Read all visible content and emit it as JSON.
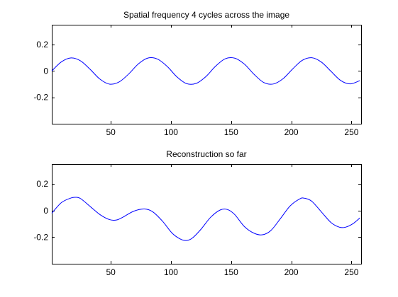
{
  "chart_data": [
    {
      "type": "line",
      "title": "Spatial frequency 4 cycles across the image",
      "xlabel": "",
      "ylabel": "",
      "xlim": [
        1,
        258
      ],
      "ylim": [
        -0.4,
        0.35
      ],
      "xticks": [
        50,
        100,
        150,
        200,
        250
      ],
      "yticks": [
        0.2,
        0,
        -0.2
      ],
      "xtick_labels": [
        "50",
        "100",
        "150",
        "200",
        "250"
      ],
      "ytick_labels": [
        "0.2",
        "0",
        "-0.2"
      ],
      "grid": false,
      "series": [
        {
          "color": "#0000ff",
          "x": [
            1,
            9,
            17,
            25,
            33,
            41,
            49,
            57,
            65,
            73,
            81,
            89,
            97,
            105,
            113,
            121,
            129,
            137,
            145,
            153,
            161,
            169,
            177,
            185,
            193,
            201,
            209,
            217,
            225,
            233,
            241,
            249,
            257
          ],
          "y": [
            0.0,
            0.069,
            0.099,
            0.076,
            0.011,
            -0.062,
            -0.1,
            -0.083,
            -0.022,
            0.054,
            0.098,
            0.089,
            0.033,
            -0.045,
            -0.096,
            -0.094,
            -0.043,
            0.035,
            0.092,
            0.097,
            0.052,
            -0.025,
            -0.087,
            -0.099,
            -0.06,
            0.014,
            0.08,
            0.1,
            0.067,
            -0.003,
            -0.072,
            -0.098,
            -0.073
          ]
        }
      ]
    },
    {
      "type": "line",
      "title": "Reconstruction so far",
      "xlabel": "",
      "ylabel": "",
      "xlim": [
        1,
        258
      ],
      "ylim": [
        -0.4,
        0.35
      ],
      "xticks": [
        50,
        100,
        150,
        200,
        250
      ],
      "yticks": [
        0.2,
        0,
        -0.2
      ],
      "xtick_labels": [
        "50",
        "100",
        "150",
        "200",
        "250"
      ],
      "ytick_labels": [
        "0.2",
        "0",
        "-0.2"
      ],
      "grid": false,
      "series": [
        {
          "color": "#0000ff",
          "x": [
            1,
            9,
            17,
            21,
            25,
            33,
            41,
            49,
            55,
            61,
            69,
            78,
            85,
            93,
            101,
            108,
            113,
            118,
            125,
            133,
            141,
            147,
            153,
            161,
            169,
            176,
            183,
            191,
            199,
            207,
            211,
            217,
            225,
            233,
            240,
            245,
            251,
            257
          ],
          "y": [
            -0.02,
            0.06,
            0.095,
            0.1,
            0.09,
            0.03,
            -0.03,
            -0.068,
            -0.07,
            -0.045,
            -0.005,
            0.012,
            -0.01,
            -0.08,
            -0.17,
            -0.215,
            -0.225,
            -0.205,
            -0.14,
            -0.05,
            0.005,
            0.008,
            -0.03,
            -0.12,
            -0.17,
            -0.182,
            -0.15,
            -0.06,
            0.035,
            0.088,
            0.093,
            0.07,
            -0.01,
            -0.09,
            -0.125,
            -0.125,
            -0.1,
            -0.055
          ]
        }
      ]
    }
  ]
}
